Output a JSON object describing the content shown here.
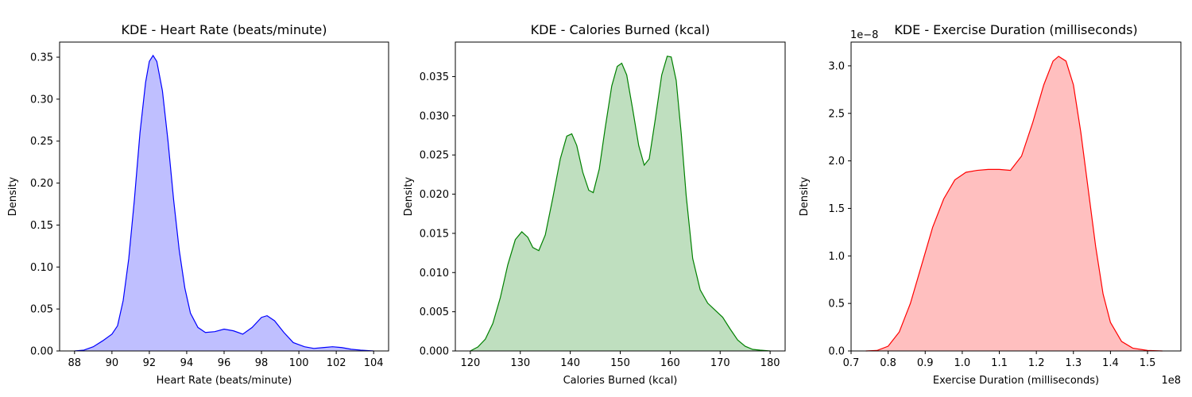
{
  "chart_data": [
    {
      "type": "area",
      "subtype": "kde",
      "title": "KDE - Heart Rate (beats/minute)",
      "xlabel": "Heart Rate (beats/minute)",
      "ylabel": "Density",
      "xlim": [
        87.2,
        104.8
      ],
      "ylim": [
        0,
        0.368
      ],
      "xticks": [
        88,
        90,
        92,
        94,
        96,
        98,
        100,
        102,
        104
      ],
      "yticks": [
        0.0,
        0.05,
        0.1,
        0.15,
        0.2,
        0.25,
        0.3,
        0.35
      ],
      "xtick_labels": [
        "88",
        "90",
        "92",
        "94",
        "96",
        "98",
        "100",
        "102",
        "104"
      ],
      "ytick_labels": [
        "0.00",
        "0.05",
        "0.10",
        "0.15",
        "0.20",
        "0.25",
        "0.30",
        "0.35"
      ],
      "offset_text": "",
      "color": "#0000ff",
      "fill_color": "#bfbfff",
      "grid": false,
      "series": [
        {
          "x": [
            88,
            88.5,
            89,
            89.5,
            90,
            90.3,
            90.6,
            90.9,
            91.2,
            91.5,
            91.8,
            92.0,
            92.2,
            92.4,
            92.7,
            93.0,
            93.3,
            93.6,
            93.9,
            94.2,
            94.6,
            95.0,
            95.5,
            96.0,
            96.5,
            97.0,
            97.5,
            98.0,
            98.3,
            98.7,
            99.2,
            99.7,
            100.3,
            100.8,
            101.3,
            101.8,
            102.3,
            102.8,
            103.3,
            104.0
          ],
          "y": [
            0.0,
            0.001,
            0.005,
            0.012,
            0.02,
            0.03,
            0.06,
            0.11,
            0.18,
            0.26,
            0.32,
            0.345,
            0.352,
            0.345,
            0.31,
            0.25,
            0.18,
            0.12,
            0.075,
            0.045,
            0.028,
            0.022,
            0.023,
            0.026,
            0.024,
            0.02,
            0.028,
            0.04,
            0.042,
            0.036,
            0.022,
            0.01,
            0.005,
            0.003,
            0.004,
            0.005,
            0.004,
            0.002,
            0.001,
            0.0
          ]
        }
      ]
    },
    {
      "type": "area",
      "subtype": "kde",
      "title": "KDE - Calories Burned (kcal)",
      "xlabel": "Calories Burned (kcal)",
      "ylabel": "Density",
      "xlim": [
        117,
        183
      ],
      "ylim": [
        0,
        0.0394
      ],
      "xticks": [
        120,
        130,
        140,
        150,
        160,
        170,
        180
      ],
      "yticks": [
        0.0,
        0.005,
        0.01,
        0.015,
        0.02,
        0.025,
        0.03,
        0.035
      ],
      "xtick_labels": [
        "120",
        "130",
        "140",
        "150",
        "160",
        "170",
        "180"
      ],
      "ytick_labels": [
        "0.000",
        "0.005",
        "0.010",
        "0.015",
        "0.020",
        "0.025",
        "0.030",
        "0.035"
      ],
      "offset_text": "",
      "color": "#008000",
      "fill_color": "#bfdfbf",
      "grid": false,
      "series": [
        {
          "x": [
            120,
            121.5,
            123,
            124.5,
            126,
            127.5,
            129,
            130.3,
            131.5,
            132.5,
            133.7,
            135,
            136.5,
            138,
            139.3,
            140.3,
            141.3,
            142.5,
            143.7,
            144.6,
            145.8,
            147,
            148.3,
            149.4,
            150.3,
            151.3,
            152.5,
            153.7,
            154.8,
            155.8,
            157,
            158.3,
            159.4,
            160.2,
            161.2,
            162.2,
            163.2,
            164.5,
            166,
            167.5,
            169,
            170.5,
            172,
            173.5,
            175,
            176.5,
            178,
            180
          ],
          "y": [
            0.0,
            0.0005,
            0.0015,
            0.0035,
            0.0068,
            0.011,
            0.0142,
            0.0152,
            0.0145,
            0.0132,
            0.0128,
            0.0148,
            0.0195,
            0.0245,
            0.0274,
            0.0277,
            0.0262,
            0.0228,
            0.0205,
            0.0202,
            0.0232,
            0.0285,
            0.0338,
            0.0363,
            0.0367,
            0.0352,
            0.0308,
            0.0262,
            0.0237,
            0.0245,
            0.0295,
            0.0352,
            0.0376,
            0.0375,
            0.0345,
            0.0278,
            0.0198,
            0.0118,
            0.0078,
            0.0061,
            0.0052,
            0.0043,
            0.0028,
            0.0014,
            0.0006,
            0.0002,
            0.0001,
            0.0
          ]
        }
      ]
    },
    {
      "type": "area",
      "subtype": "kde",
      "title": "KDE - Exercise Duration (milliseconds)",
      "xlabel": "Exercise Duration (milliseconds)",
      "ylabel": "Density",
      "xlim": [
        0.7,
        1.59
      ],
      "ylim": [
        0,
        3.25
      ],
      "xticks": [
        0.7,
        0.8,
        0.9,
        1.0,
        1.1,
        1.2,
        1.3,
        1.4,
        1.5
      ],
      "yticks": [
        0.0,
        0.5,
        1.0,
        1.5,
        2.0,
        2.5,
        3.0
      ],
      "xtick_labels": [
        "0.7",
        "0.8",
        "0.9",
        "1.0",
        "1.1",
        "1.2",
        "1.3",
        "1.4",
        "1.5"
      ],
      "ytick_labels": [
        "0.0",
        "0.5",
        "1.0",
        "1.5",
        "2.0",
        "2.5",
        "3.0"
      ],
      "x_offset_text": "1e8",
      "y_offset_text": "1e−8",
      "color": "#ff0000",
      "fill_color": "#ffbfbf",
      "grid": false,
      "series": [
        {
          "x": [
            0.74,
            0.77,
            0.8,
            0.83,
            0.86,
            0.89,
            0.92,
            0.95,
            0.98,
            1.01,
            1.04,
            1.07,
            1.1,
            1.13,
            1.16,
            1.19,
            1.22,
            1.245,
            1.26,
            1.28,
            1.3,
            1.32,
            1.34,
            1.36,
            1.38,
            1.4,
            1.43,
            1.46,
            1.5,
            1.54
          ],
          "y": [
            0.0,
            0.005,
            0.05,
            0.2,
            0.5,
            0.9,
            1.3,
            1.6,
            1.8,
            1.88,
            1.9,
            1.91,
            1.91,
            1.9,
            2.05,
            2.4,
            2.8,
            3.05,
            3.1,
            3.05,
            2.8,
            2.3,
            1.7,
            1.1,
            0.6,
            0.3,
            0.1,
            0.03,
            0.005,
            0.0
          ]
        }
      ]
    }
  ]
}
